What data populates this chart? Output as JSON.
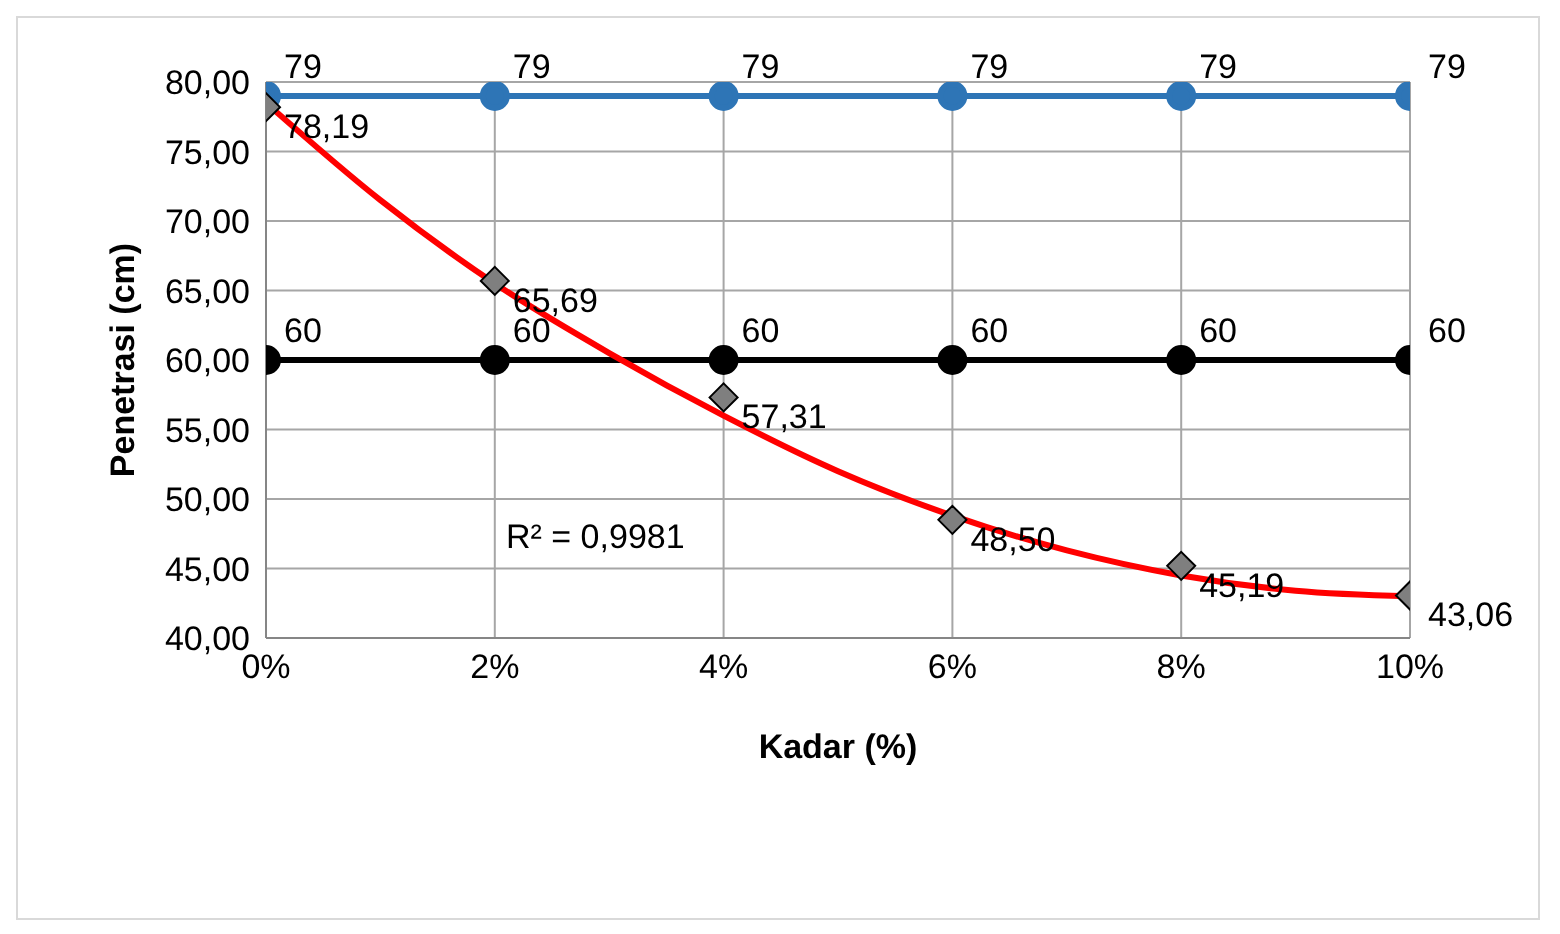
{
  "chart_data": {
    "type": "line",
    "xlabel": "Kadar (%)",
    "ylabel": "Penetrasi (cm)",
    "x": [
      0,
      2,
      4,
      6,
      8,
      10
    ],
    "xlim": [
      0,
      10
    ],
    "xticks": [
      {
        "value": 0,
        "label": "0%"
      },
      {
        "value": 2,
        "label": "2%"
      },
      {
        "value": 4,
        "label": "4%"
      },
      {
        "value": 6,
        "label": "6%"
      },
      {
        "value": 8,
        "label": "8%"
      },
      {
        "value": 10,
        "label": "10%"
      }
    ],
    "ylim": [
      40,
      80
    ],
    "yticks": [
      {
        "value": 40,
        "label": "40,00"
      },
      {
        "value": 45,
        "label": "45,00"
      },
      {
        "value": 50,
        "label": "50,00"
      },
      {
        "value": 55,
        "label": "55,00"
      },
      {
        "value": 60,
        "label": "60,00"
      },
      {
        "value": 65,
        "label": "65,00"
      },
      {
        "value": 70,
        "label": "70,00"
      },
      {
        "value": 75,
        "label": "75,00"
      },
      {
        "value": 80,
        "label": "80,00"
      }
    ],
    "grid": true,
    "legend": false,
    "line_style": "solid",
    "series": [
      {
        "color": "#2e75b6",
        "marker": "circle",
        "values": [
          79,
          79,
          79,
          79,
          79,
          79
        ],
        "value_labels": [
          "79",
          "79",
          "79",
          "79",
          "79",
          "79"
        ]
      },
      {
        "color": "#000000",
        "marker": "circle",
        "values": [
          60,
          60,
          60,
          60,
          60,
          60
        ],
        "value_labels": [
          "60",
          "60",
          "60",
          "60",
          "60",
          "60"
        ]
      },
      {
        "type": "scatter",
        "color": "#7f7f7f",
        "marker": "diamond",
        "values": [
          78.19,
          65.69,
          57.31,
          48.5,
          45.19,
          43.06
        ],
        "value_labels": [
          "78,19",
          "65,69",
          "57,31",
          "48,50",
          "45,19",
          "43,06"
        ]
      },
      {
        "color": "#ff0000",
        "marker": "none",
        "x": [
          0,
          1,
          2,
          3,
          4,
          5,
          6,
          7,
          8,
          9,
          10
        ],
        "values": [
          78.5,
          71.5,
          65.5,
          60.5,
          56.0,
          52.0,
          48.8,
          46.3,
          44.5,
          43.4,
          43.0
        ]
      }
    ],
    "annotations": [
      "R² = 0,9981"
    ]
  }
}
